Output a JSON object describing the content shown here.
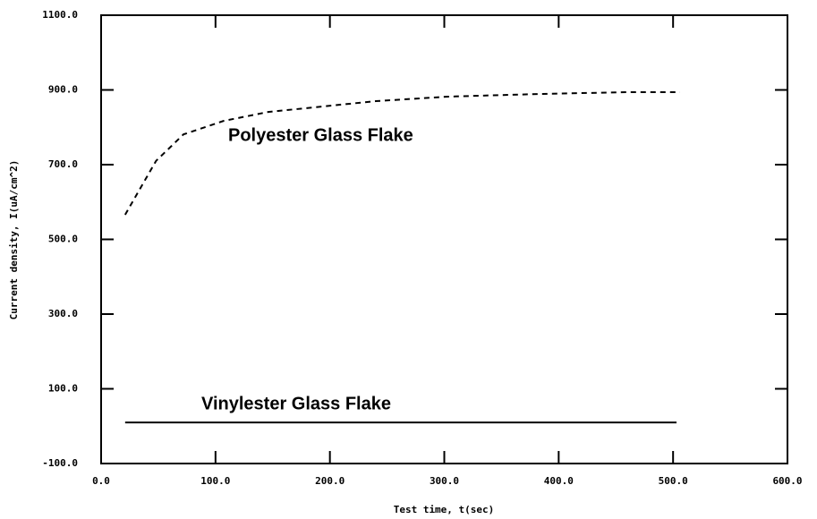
{
  "chart_data": {
    "type": "line",
    "xlabel": "Test time, t(sec)",
    "ylabel": "Current density, I(uA/cm^2)",
    "xlim": [
      0,
      600
    ],
    "xticks": [
      {
        "value": 0,
        "label": "0.0"
      },
      {
        "value": 100,
        "label": "100.0"
      },
      {
        "value": 200,
        "label": "200.0"
      },
      {
        "value": 300,
        "label": "300.0"
      },
      {
        "value": 400,
        "label": "400.0"
      },
      {
        "value": 500,
        "label": "500.0"
      },
      {
        "value": 600,
        "label": "600.0"
      }
    ],
    "ylim": [
      -100,
      1100
    ],
    "yticks": [
      {
        "value": -100,
        "label": "-100.0"
      },
      {
        "value": 100,
        "label": "100.0"
      },
      {
        "value": 300,
        "label": "300.0"
      },
      {
        "value": 500,
        "label": "500.0"
      },
      {
        "value": 700,
        "label": "700.0"
      },
      {
        "value": 900,
        "label": "900.0"
      },
      {
        "value": 1100,
        "label": "1100.0"
      }
    ],
    "series": [
      {
        "name": "Polyester Glass Flake",
        "color": "#000000",
        "dash": true,
        "x": [
          21,
          48,
          72,
          107,
          146,
          185,
          240,
          303,
          381,
          459,
          506
        ],
        "values": [
          566,
          710,
          781,
          817,
          841,
          853,
          870,
          882,
          889,
          894,
          894
        ]
      },
      {
        "name": "Vinylester Glass Flake",
        "color": "#000000",
        "dash": false,
        "x": [
          21,
          503
        ],
        "values": [
          10,
          10
        ]
      }
    ]
  }
}
